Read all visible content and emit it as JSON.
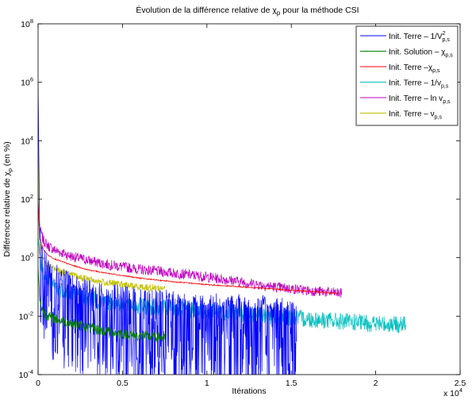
{
  "figure": {
    "title_main": "Évolution de la différence relative de χ",
    "title_sub": "p",
    "title_tail": " pour la méthode CSI"
  },
  "chart_data": {
    "type": "line",
    "title": "Évolution de la différence relative de χp pour la méthode CSI",
    "xlabel": "Itérations",
    "ylabel": "Différence relative de χp (en %)",
    "x_multiplier_label": "x 10",
    "x_multiplier_exp": "4",
    "xlim": [
      0,
      25000
    ],
    "ylim": [
      0.0001,
      100000000
    ],
    "yscale": "log",
    "grid": false,
    "legend_position": "top-right",
    "xticks": [
      0,
      5000,
      10000,
      15000,
      20000,
      25000
    ],
    "xtick_labels": [
      "0",
      "0.5",
      "1",
      "1.5",
      "2",
      "2.5"
    ],
    "yticks": [
      0.0001,
      0.01,
      1,
      100,
      10000,
      1000000,
      100000000
    ],
    "ytick_base": "10",
    "ytick_exps": [
      "-4",
      "-2",
      "0",
      "2",
      "4",
      "6",
      "8"
    ],
    "series": [
      {
        "name": "Init. Terre – 1/V²p,s",
        "legend_main": "Init. Terre – 1/V",
        "legend_sup": "2",
        "legend_sub": "p,s",
        "color": "#0000ff",
        "x": [
          0,
          100,
          300,
          600,
          1000,
          2000,
          3000,
          4000,
          6000,
          8000,
          10000,
          12000,
          14000,
          15300
        ],
        "y": [
          1000000,
          4,
          0.8,
          0.35,
          0.2,
          0.1,
          0.06,
          0.045,
          0.03,
          0.024,
          0.02,
          0.018,
          0.016,
          0.015
        ],
        "noise_dec": 1.6
      },
      {
        "name": "Init. Solution – χp,s",
        "legend_main": "Init. Solution – χ",
        "legend_sup": "",
        "legend_sub": "p,s",
        "color": "#008000",
        "x": [
          0,
          100,
          300,
          600,
          1000,
          2000,
          3000,
          4000,
          5000,
          6000,
          7500
        ],
        "y": [
          0.5,
          0.03,
          0.015,
          0.01,
          0.008,
          0.0055,
          0.004,
          0.003,
          0.0025,
          0.0021,
          0.0018
        ],
        "noise_dec": 0.18
      },
      {
        "name": "Init. Terre –χp,s",
        "legend_main": "Init. Terre –χ",
        "legend_sup": "",
        "legend_sub": "p,s",
        "color": "#ff0000",
        "x": [
          0,
          100,
          300,
          600,
          1000,
          2000,
          3000,
          4000,
          6000,
          8000,
          10000,
          12000,
          14000,
          16000,
          17800
        ],
        "y": [
          60,
          5,
          2,
          1.2,
          0.9,
          0.55,
          0.38,
          0.3,
          0.2,
          0.15,
          0.12,
          0.1,
          0.085,
          0.07,
          0.06
        ],
        "noise_dec": 0.02
      },
      {
        "name": "Init. Terre – 1/vp,s",
        "legend_main": "Init. Terre – 1/v",
        "legend_sup": "",
        "legend_sub": "p,s",
        "color": "#00bfbf",
        "x": [
          0,
          100,
          300,
          600,
          1000,
          2000,
          3000,
          4000,
          6000,
          8000,
          10000,
          12000,
          14000,
          16000,
          18000,
          20000,
          21800
        ],
        "y": [
          5,
          1,
          0.3,
          0.15,
          0.1,
          0.06,
          0.04,
          0.03,
          0.022,
          0.018,
          0.015,
          0.012,
          0.01,
          0.008,
          0.0065,
          0.0055,
          0.005
        ],
        "noise_dec": 0.3
      },
      {
        "name": "Init. Terre – ln vp,s",
        "legend_main": "Init. Terre – ln v",
        "legend_sup": "",
        "legend_sub": "p,s",
        "color": "#bf00bf",
        "x": [
          0,
          100,
          300,
          600,
          1000,
          2000,
          3000,
          4000,
          6000,
          8000,
          10000,
          12000,
          14000,
          16000,
          18000
        ],
        "y": [
          80,
          10,
          4,
          2.5,
          1.8,
          1.1,
          0.8,
          0.6,
          0.4,
          0.3,
          0.22,
          0.15,
          0.1,
          0.075,
          0.06
        ],
        "noise_dec": 0.18
      },
      {
        "name": "Init. Terre – νp,s",
        "legend_main": "Init. Terre – ν",
        "legend_sup": "",
        "legend_sub": "p,s",
        "color": "#bfbf00",
        "x": [
          0,
          60,
          200,
          500,
          1000,
          2000,
          3000,
          4000,
          5000,
          6000,
          7500
        ],
        "y": [
          1000000,
          20,
          1.5,
          0.6,
          0.4,
          0.25,
          0.18,
          0.14,
          0.12,
          0.1,
          0.09
        ],
        "noise_dec": 0.12
      }
    ]
  }
}
